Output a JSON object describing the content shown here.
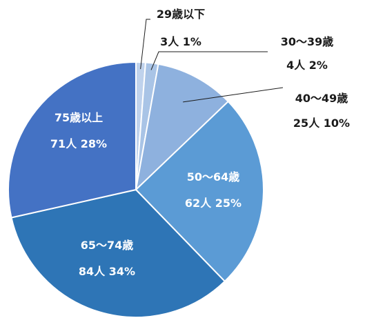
{
  "chart_data": {
    "type": "pie",
    "title": "",
    "slices": [
      {
        "label": "29歳以下",
        "count_text": "3人",
        "percent_text": "1%",
        "count": 3,
        "percent": 1,
        "color": "#bfd2ec"
      },
      {
        "label": "30〜39歳",
        "count_text": "4人",
        "percent_text": "2%",
        "count": 4,
        "percent": 2,
        "color": "#a9c4e6"
      },
      {
        "label": "40〜49歳",
        "count_text": "25人",
        "percent_text": "10%",
        "count": 25,
        "percent": 10,
        "color": "#8eb1de"
      },
      {
        "label": "50〜64歳",
        "count_text": "62人",
        "percent_text": "25%",
        "count": 62,
        "percent": 25,
        "color": "#5b9bd5"
      },
      {
        "label": "65〜74歳",
        "count_text": "84人",
        "percent_text": "34%",
        "count": 84,
        "percent": 34,
        "color": "#2e75b6"
      },
      {
        "label": "75歳以上",
        "count_text": "71人",
        "percent_text": "28%",
        "count": 71,
        "percent": 28,
        "color": "#4472c4"
      }
    ]
  }
}
